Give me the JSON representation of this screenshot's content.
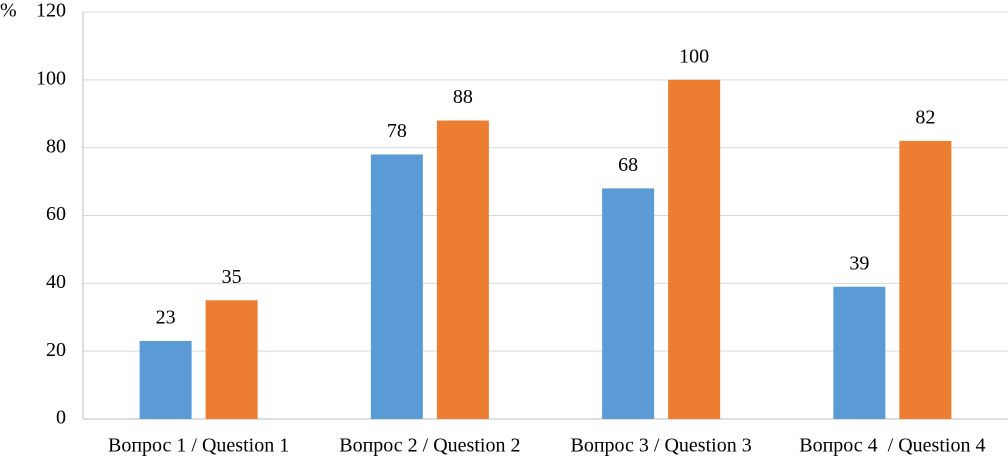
{
  "chart_data": {
    "type": "bar",
    "y_label": "%",
    "categories": [
      "Вопрос 1 / Question 1",
      "Вопрос 2 / Question 2",
      "Вопрос 3 / Question 3",
      "Вопрос 4  / Question 4"
    ],
    "series": [
      {
        "color": "#5b9bd5",
        "values": [
          23,
          78,
          68,
          39
        ]
      },
      {
        "color": "#ed7d31",
        "values": [
          35,
          88,
          100,
          82
        ]
      }
    ],
    "ylim": [
      0,
      120
    ],
    "yticks": [
      0,
      20,
      40,
      60,
      80,
      100,
      120
    ],
    "grid": true
  }
}
